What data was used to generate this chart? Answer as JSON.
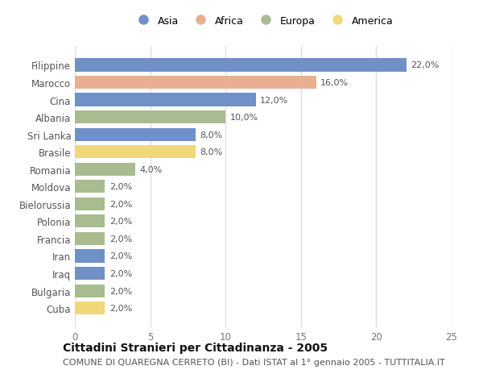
{
  "countries": [
    "Filippine",
    "Marocco",
    "Cina",
    "Albania",
    "Sri Lanka",
    "Brasile",
    "Romania",
    "Moldova",
    "Bielorussia",
    "Polonia",
    "Francia",
    "Iran",
    "Iraq",
    "Bulgaria",
    "Cuba"
  ],
  "values": [
    22.0,
    16.0,
    12.0,
    10.0,
    8.0,
    8.0,
    4.0,
    2.0,
    2.0,
    2.0,
    2.0,
    2.0,
    2.0,
    2.0,
    2.0
  ],
  "continents": [
    "Asia",
    "Africa",
    "Asia",
    "Europa",
    "Asia",
    "America",
    "Europa",
    "Europa",
    "Europa",
    "Europa",
    "Europa",
    "Asia",
    "Asia",
    "Europa",
    "America"
  ],
  "continent_colors": {
    "Asia": "#7090c8",
    "Africa": "#e8b090",
    "Europa": "#a8bc90",
    "America": "#f0d878"
  },
  "legend_order": [
    "Asia",
    "Africa",
    "Europa",
    "America"
  ],
  "xlim": [
    0,
    25
  ],
  "title": "Cittadini Stranieri per Cittadinanza - 2005",
  "subtitle": "COMUNE DI QUAREGNA CERRETO (BI) - Dati ISTAT al 1° gennaio 2005 - TUTTITALIA.IT",
  "background_color": "#ffffff",
  "plot_bg_color": "#ffffff",
  "bar_height": 0.75,
  "title_fontsize": 10,
  "subtitle_fontsize": 8,
  "label_fontsize": 8,
  "tick_fontsize": 8.5,
  "legend_fontsize": 9
}
